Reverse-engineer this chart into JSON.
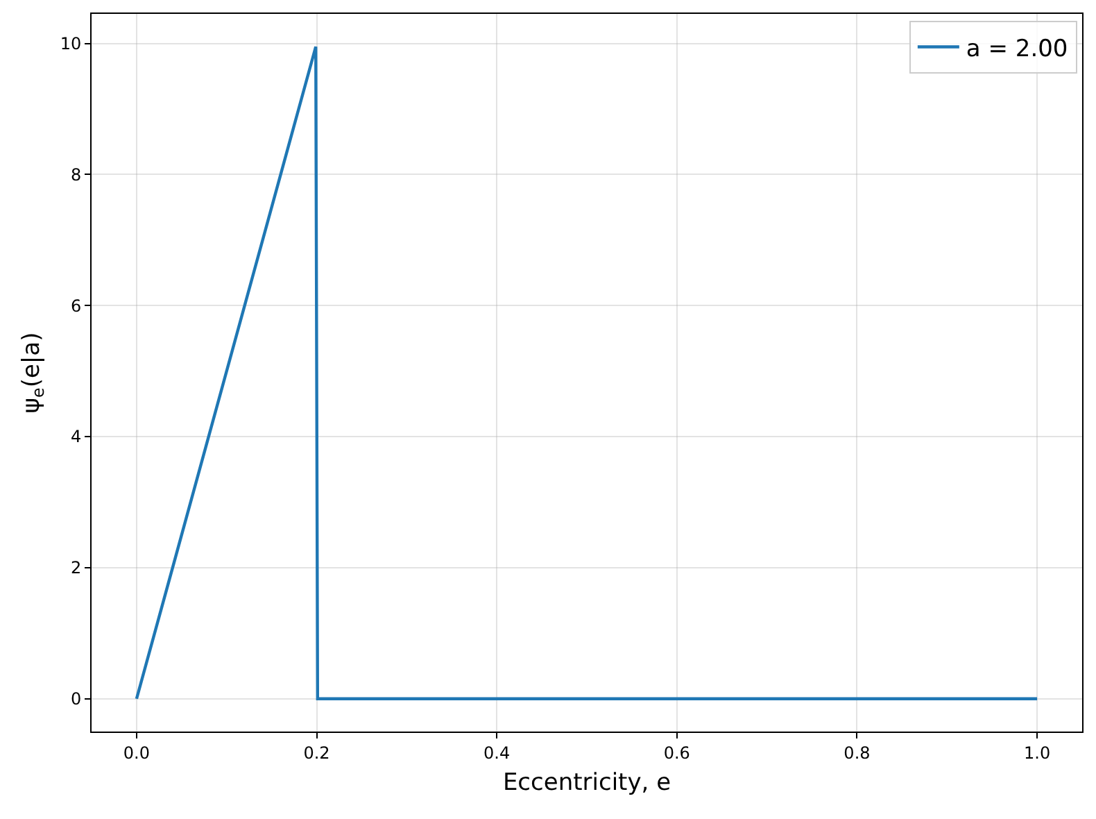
{
  "chart_data": {
    "type": "line",
    "xlabel": "Eccentricity, e",
    "ylabel": "ψ$_{e}$(e|a)",
    "x": [
      0.0,
      0.199,
      0.201,
      1.0
    ],
    "series": [
      {
        "name": "a = 2.00",
        "color": "#1f77b4",
        "values": [
          0.0,
          9.95,
          0.0,
          0.0
        ]
      }
    ],
    "xlim": [
      -0.05,
      1.05
    ],
    "xticks": [
      {
        "value": 0,
        "label": "0.0"
      },
      0.2,
      0.4,
      0.6,
      0.8,
      {
        "value": 1,
        "label": "1.0"
      }
    ],
    "ylim": [
      -0.5,
      10.45
    ],
    "yticks": [
      0,
      2,
      4,
      6,
      8,
      10
    ],
    "grid": true,
    "legend": "top right",
    "marker": "none",
    "line_style": "solid"
  }
}
